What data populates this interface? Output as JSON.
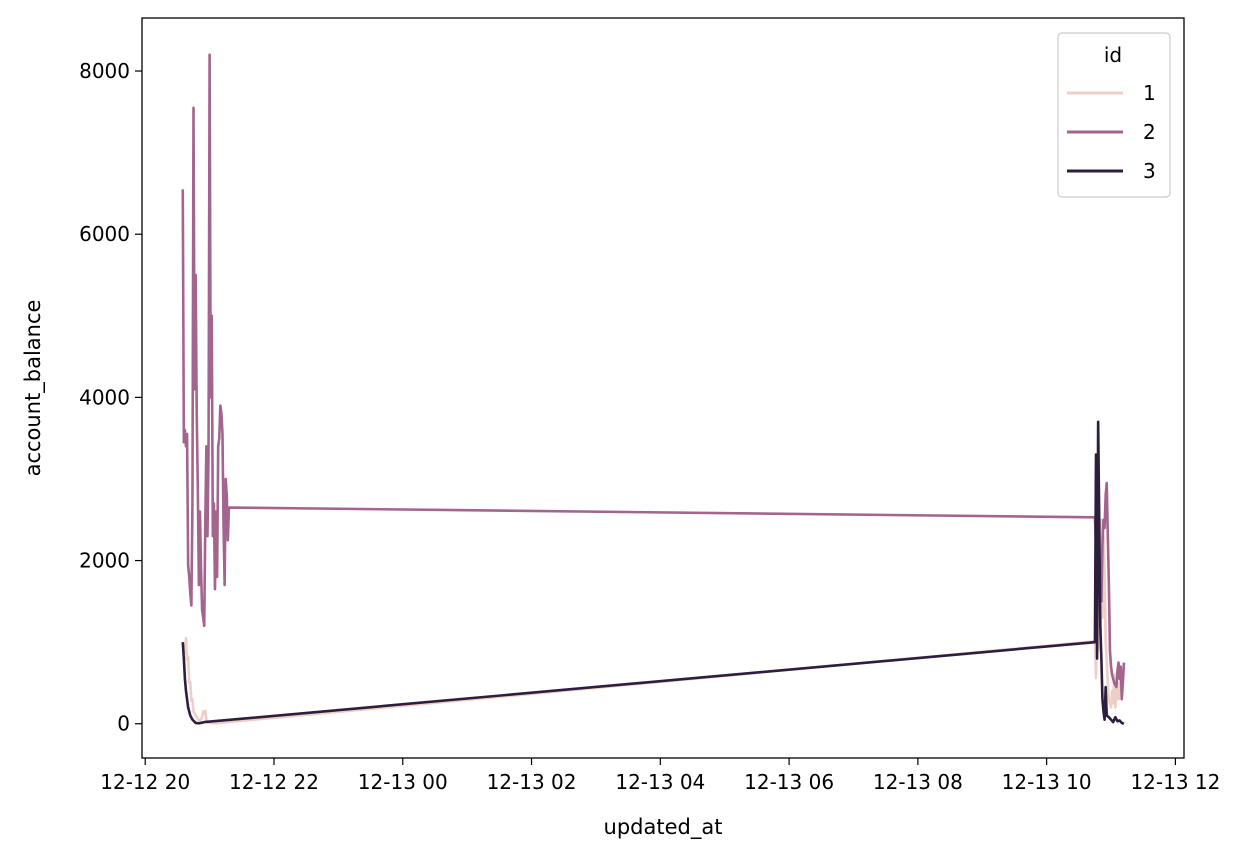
{
  "chart_data": {
    "type": "line",
    "title": "",
    "xlabel": "updated_at",
    "ylabel": "account_balance",
    "x_ticks": [
      "12-12 20",
      "12-12 22",
      "12-13 00",
      "12-13 02",
      "12-13 04",
      "12-13 06",
      "12-13 08",
      "12-13 10",
      "12-13 12"
    ],
    "x_range": [
      "12-12 19:57",
      "12-13 12:08"
    ],
    "y_ticks": [
      0,
      2000,
      4000,
      6000,
      8000
    ],
    "ylim": [
      -420,
      8650
    ],
    "grid": false,
    "legend": {
      "title": "id",
      "placement": "top-right"
    },
    "series": [
      {
        "name": "1",
        "color": "#eecfc6",
        "points": [
          [
            "12-12 20:35",
            1000
          ],
          [
            "12-12 20:37",
            870
          ],
          [
            "12-12 20:38",
            1050
          ],
          [
            "12-12 20:39",
            780
          ],
          [
            "12-12 20:40",
            820
          ],
          [
            "12-12 20:41",
            500
          ],
          [
            "12-12 20:42",
            510
          ],
          [
            "12-12 20:43",
            280
          ],
          [
            "12-12 20:44",
            300
          ],
          [
            "12-12 20:45",
            150
          ],
          [
            "12-12 20:47",
            100
          ],
          [
            "12-12 20:49",
            60
          ],
          [
            "12-12 20:51",
            30
          ],
          [
            "12-12 20:53",
            80
          ],
          [
            "12-12 20:54",
            150
          ],
          [
            "12-12 20:55",
            120
          ],
          [
            "12-12 20:56",
            160
          ],
          [
            "12-12 20:57",
            50
          ],
          [
            "12-12 20:58",
            20
          ],
          [
            "12-12 21:00",
            10
          ],
          [
            "12-12 21:05",
            5
          ],
          [
            "12-13 10:45",
            1010
          ],
          [
            "12-13 10:46",
            560
          ],
          [
            "12-13 10:47",
            1400
          ],
          [
            "12-13 10:48",
            900
          ],
          [
            "12-13 10:49",
            1600
          ],
          [
            "12-13 10:50",
            1100
          ],
          [
            "12-13 10:51",
            2500
          ],
          [
            "12-13 10:52",
            1300
          ],
          [
            "12-13 10:53",
            2300
          ],
          [
            "12-13 10:54",
            1900
          ],
          [
            "12-13 10:55",
            1000
          ],
          [
            "12-13 10:56",
            800
          ],
          [
            "12-13 10:57",
            500
          ],
          [
            "12-13 10:58",
            300
          ],
          [
            "12-13 11:00",
            200
          ],
          [
            "12-13 11:01",
            400
          ],
          [
            "12-13 11:02",
            250
          ],
          [
            "12-13 11:03",
            600
          ],
          [
            "12-13 11:04",
            200
          ],
          [
            "12-13 11:06",
            500
          ],
          [
            "12-13 11:07",
            300
          ],
          [
            "12-13 11:08",
            450
          ],
          [
            "12-13 11:09",
            600
          ],
          [
            "12-13 11:11",
            500
          ],
          [
            "12-13 11:12",
            700
          ]
        ]
      },
      {
        "name": "2",
        "color": "#a3658e",
        "points": [
          [
            "12-12 20:35",
            6550
          ],
          [
            "12-12 20:36",
            3450
          ],
          [
            "12-12 20:37",
            3600
          ],
          [
            "12-12 20:38",
            3400
          ],
          [
            "12-12 20:39",
            3550
          ],
          [
            "12-12 20:40",
            1950
          ],
          [
            "12-12 20:41",
            1800
          ],
          [
            "12-12 20:42",
            1600
          ],
          [
            "12-12 20:43",
            1450
          ],
          [
            "12-12 20:44",
            2700
          ],
          [
            "12-12 20:45",
            7550
          ],
          [
            "12-12 20:46",
            4100
          ],
          [
            "12-12 20:47",
            5500
          ],
          [
            "12-12 20:48",
            3800
          ],
          [
            "12-12 20:49",
            2900
          ],
          [
            "12-12 20:50",
            1700
          ],
          [
            "12-12 20:51",
            2600
          ],
          [
            "12-12 20:52",
            1900
          ],
          [
            "12-12 20:53",
            1400
          ],
          [
            "12-12 20:54",
            1300
          ],
          [
            "12-12 20:55",
            1200
          ],
          [
            "12-12 20:56",
            2500
          ],
          [
            "12-12 20:57",
            3400
          ],
          [
            "12-12 20:58",
            2300
          ],
          [
            "12-12 20:59",
            3300
          ],
          [
            "12-12 21:00",
            8200
          ],
          [
            "12-12 21:01",
            4000
          ],
          [
            "12-12 21:02",
            5000
          ],
          [
            "12-12 21:03",
            2300
          ],
          [
            "12-12 21:04",
            2700
          ],
          [
            "12-12 21:05",
            1650
          ],
          [
            "12-12 21:06",
            2600
          ],
          [
            "12-12 21:07",
            1800
          ],
          [
            "12-12 21:08",
            3400
          ],
          [
            "12-12 21:09",
            3500
          ],
          [
            "12-12 21:10",
            3900
          ],
          [
            "12-12 21:11",
            3800
          ],
          [
            "12-12 21:12",
            3550
          ],
          [
            "12-12 21:13",
            2400
          ],
          [
            "12-12 21:14",
            1700
          ],
          [
            "12-12 21:15",
            3000
          ],
          [
            "12-12 21:16",
            2800
          ],
          [
            "12-12 21:17",
            2250
          ],
          [
            "12-12 21:18",
            2650
          ],
          [
            "12-13 10:45",
            2530
          ],
          [
            "12-13 10:46",
            2200
          ],
          [
            "12-13 10:47",
            1800
          ],
          [
            "12-13 10:48",
            2100
          ],
          [
            "12-13 10:49",
            1900
          ],
          [
            "12-13 10:50",
            2000
          ],
          [
            "12-13 10:51",
            1500
          ],
          [
            "12-13 10:52",
            2200
          ],
          [
            "12-13 10:53",
            2500
          ],
          [
            "12-13 10:54",
            2400
          ],
          [
            "12-13 10:55",
            2800
          ],
          [
            "12-13 10:56",
            2950
          ],
          [
            "12-13 10:57",
            2300
          ],
          [
            "12-13 10:58",
            1700
          ],
          [
            "12-13 10:59",
            900
          ],
          [
            "12-13 11:00",
            700
          ],
          [
            "12-13 11:01",
            600
          ],
          [
            "12-13 11:03",
            500
          ],
          [
            "12-13 11:05",
            450
          ],
          [
            "12-13 11:06",
            650
          ],
          [
            "12-13 11:07",
            750
          ],
          [
            "12-13 11:08",
            550
          ],
          [
            "12-13 11:09",
            700
          ],
          [
            "12-13 11:10",
            300
          ],
          [
            "12-13 11:11",
            500
          ],
          [
            "12-13 11:12",
            750
          ]
        ]
      },
      {
        "name": "3",
        "color": "#2d1e3e",
        "points": [
          [
            "12-12 20:35",
            1000
          ],
          [
            "12-12 20:36",
            800
          ],
          [
            "12-12 20:37",
            550
          ],
          [
            "12-12 20:38",
            400
          ],
          [
            "12-12 20:39",
            300
          ],
          [
            "12-12 20:40",
            200
          ],
          [
            "12-12 20:42",
            100
          ],
          [
            "12-12 20:44",
            50
          ],
          [
            "12-12 20:47",
            10
          ],
          [
            "12-12 20:50",
            5
          ],
          [
            "12-12 20:55",
            20
          ],
          [
            "12-13 10:45",
            1000
          ],
          [
            "12-13 10:46",
            3300
          ],
          [
            "12-13 10:47",
            800
          ],
          [
            "12-13 10:48",
            3700
          ],
          [
            "12-13 10:49",
            2500
          ],
          [
            "12-13 10:50",
            1200
          ],
          [
            "12-13 10:51",
            800
          ],
          [
            "12-13 10:52",
            300
          ],
          [
            "12-13 10:53",
            150
          ],
          [
            "12-13 10:54",
            50
          ],
          [
            "12-13 10:55",
            450
          ],
          [
            "12-13 10:56",
            100
          ],
          [
            "12-13 10:58",
            80
          ],
          [
            "12-13 11:00",
            50
          ],
          [
            "12-13 11:02",
            20
          ],
          [
            "12-13 11:04",
            80
          ],
          [
            "12-13 11:06",
            30
          ],
          [
            "12-13 11:08",
            40
          ],
          [
            "12-13 11:10",
            10
          ],
          [
            "12-13 11:12",
            0
          ]
        ]
      }
    ]
  }
}
